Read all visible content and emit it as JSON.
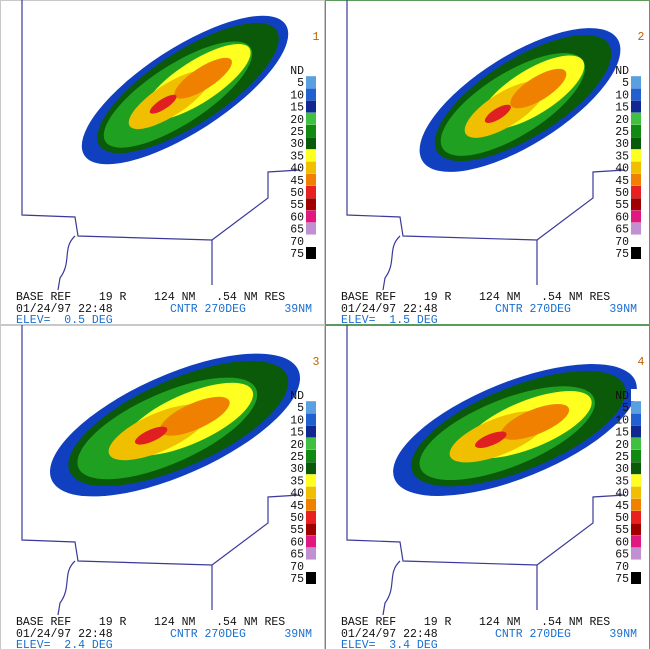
{
  "panels": [
    {
      "number": 1,
      "product": "BASE REF    19 R    124 NM   .54 NM RES",
      "datetime": "01/24/97 22:48",
      "center": "CNTR 270DEG",
      "range": "39NM",
      "elevation": "ELEV=  0.5 DEG"
    },
    {
      "number": 2,
      "product": "BASE REF    19 R    124 NM   .54 NM RES",
      "datetime": "01/24/97 22:48",
      "center": "CNTR 270DEG",
      "range": "39NM",
      "elevation": "ELEV=  1.5 DEG"
    },
    {
      "number": 3,
      "product": "BASE REF    19 R    124 NM   .54 NM RES",
      "datetime": "01/24/97 22:48",
      "center": "CNTR 270DEG",
      "range": "39NM",
      "elevation": "ELEV=  2.4 DEG"
    },
    {
      "number": 4,
      "product": "BASE REF    19 R    124 NM   .54 NM RES",
      "datetime": "01/24/97 22:48",
      "center": "CNTR 270DEG",
      "range": "39NM",
      "elevation": "ELEV=  3.4 DEG"
    }
  ],
  "legend": {
    "labels": [
      "ND",
      "5",
      "10",
      "15",
      "20",
      "25",
      "30",
      "35",
      "40",
      "45",
      "50",
      "55",
      "60",
      "65",
      "70",
      "75"
    ],
    "colors": [
      "#ffffff",
      "#5aa0e0",
      "#2060d0",
      "#102890",
      "#40c040",
      "#108a10",
      "#0a5a0a",
      "#ffff20",
      "#f0c000",
      "#f08000",
      "#e82020",
      "#a00000",
      "#e01880",
      "#c090d0",
      "#ffffff",
      "#000000"
    ]
  }
}
